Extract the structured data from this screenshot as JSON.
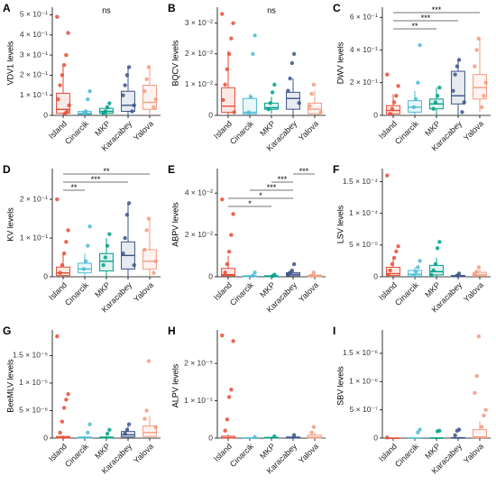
{
  "chart_data": [
    {
      "type": "box",
      "panel": "A",
      "ylabel": "VDV1 levels",
      "ylim": [
        0,
        0.52
      ],
      "yticks": [
        0,
        {
          "value": 0.1,
          "label": "1 × 10⁻¹"
        },
        {
          "value": 0.2,
          "label": "2 × 10⁻¹"
        },
        {
          "value": 0.3,
          "label": "3 × 10⁻¹"
        },
        {
          "value": 0.4,
          "label": "4 × 10⁻¹"
        },
        {
          "value": 0.5,
          "label": "5 × 10⁻¹"
        }
      ],
      "annotation": "ns",
      "brackets": [],
      "series": [
        {
          "name": "Island",
          "color": "#e64b35",
          "q1": 0.01,
          "median": 0.03,
          "q3": 0.11,
          "whislo": 0,
          "whishi": 0.25,
          "points": [
            0.49,
            0.41,
            0.3,
            0.25,
            0.2,
            0.15,
            0.08,
            0.05,
            0.02,
            0.01
          ]
        },
        {
          "name": "Cinarcik",
          "color": "#4dbbd5",
          "q1": 0.005,
          "median": 0.01,
          "q3": 0.02,
          "whislo": 0,
          "whishi": 0.03,
          "points": [
            0.12,
            0.08,
            0.02,
            0.01
          ]
        },
        {
          "name": "MKP",
          "color": "#00a087",
          "q1": 0.01,
          "median": 0.02,
          "q3": 0.035,
          "whislo": 0,
          "whishi": 0.05,
          "points": [
            0.06,
            0.04,
            0.02,
            0.01
          ]
        },
        {
          "name": "Karacabey",
          "color": "#3c5488",
          "q1": 0.02,
          "median": 0.05,
          "q3": 0.12,
          "whislo": 0,
          "whishi": 0.24,
          "points": [
            0.24,
            0.2,
            0.15,
            0.1,
            0.05,
            0.02
          ]
        },
        {
          "name": "Yalova",
          "color": "#f39b7f",
          "q1": 0.03,
          "median": 0.065,
          "q3": 0.15,
          "whislo": 0,
          "whishi": 0.25,
          "points": [
            0.24,
            0.18,
            0.12,
            0.08,
            0.04
          ]
        }
      ]
    },
    {
      "type": "box",
      "panel": "B",
      "ylabel": "BQCV levels",
      "ylim": [
        0,
        0.034
      ],
      "yticks": [
        0,
        {
          "value": 0.01,
          "label": "1 × 10⁻²"
        },
        {
          "value": 0.02,
          "label": "2 × 10⁻²"
        },
        {
          "value": 0.03,
          "label": "3 × 10⁻²"
        }
      ],
      "annotation": "ns",
      "brackets": [],
      "series": [
        {
          "name": "Island",
          "color": "#e64b35",
          "q1": 0.001,
          "median": 0.003,
          "q3": 0.009,
          "whislo": 0,
          "whishi": 0.021,
          "points": [
            0.033,
            0.03,
            0.025,
            0.02,
            0.015,
            0.01,
            0.005,
            0.001
          ]
        },
        {
          "name": "Cinarcik",
          "color": "#4dbbd5",
          "q1": 0.0005,
          "median": 0.001,
          "q3": 0.0055,
          "whislo": 0,
          "whishi": 0.007,
          "points": [
            0.026,
            0.02,
            0.006,
            0.001
          ]
        },
        {
          "name": "MKP",
          "color": "#00a087",
          "q1": 0.002,
          "median": 0.0025,
          "q3": 0.004,
          "whislo": 0.0005,
          "whishi": 0.006,
          "points": [
            0.01,
            0.0075,
            0.004,
            0.002
          ]
        },
        {
          "name": "Karacabey",
          "color": "#3c5488",
          "q1": 0.002,
          "median": 0.0055,
          "q3": 0.0075,
          "whislo": 0,
          "whishi": 0.012,
          "points": [
            0.02,
            0.017,
            0.012,
            0.008,
            0.004
          ]
        },
        {
          "name": "Yalova",
          "color": "#f39b7f",
          "q1": 0.0005,
          "median": 0.002,
          "q3": 0.004,
          "whislo": 0,
          "whishi": 0.008,
          "points": [
            0.01,
            0.007,
            0.003,
            0.001
          ]
        }
      ]
    },
    {
      "type": "box",
      "panel": "C",
      "ylabel": "DWV levels",
      "ylim": [
        0,
        0.64
      ],
      "yticks": [
        0,
        {
          "value": 0.2,
          "label": "2 × 10⁻¹"
        },
        {
          "value": 0.4,
          "label": "4 × 10⁻¹"
        },
        {
          "value": 0.6,
          "label": "6 × 10⁻¹"
        }
      ],
      "brackets": [
        {
          "pair": [
            0,
            2
          ],
          "label": "**"
        },
        {
          "pair": [
            0,
            3
          ],
          "label": "***"
        },
        {
          "pair": [
            0,
            4
          ],
          "label": "***"
        }
      ],
      "series": [
        {
          "name": "Island",
          "color": "#e64b35",
          "q1": 0.01,
          "median": 0.03,
          "q3": 0.06,
          "whislo": 0,
          "whishi": 0.13,
          "points": [
            0.25,
            0.18,
            0.12,
            0.08,
            0.04,
            0.01
          ]
        },
        {
          "name": "Cinarcik",
          "color": "#4dbbd5",
          "q1": 0.02,
          "median": 0.05,
          "q3": 0.09,
          "whislo": 0,
          "whishi": 0.15,
          "points": [
            0.43,
            0.2,
            0.1,
            0.05
          ]
        },
        {
          "name": "MKP",
          "color": "#00a087",
          "q1": 0.04,
          "median": 0.07,
          "q3": 0.1,
          "whislo": 0,
          "whishi": 0.17,
          "points": [
            0.17,
            0.12,
            0.08,
            0.04
          ]
        },
        {
          "name": "Karacabey",
          "color": "#3c5488",
          "q1": 0.07,
          "median": 0.12,
          "q3": 0.27,
          "whislo": 0,
          "whishi": 0.34,
          "points": [
            0.34,
            0.3,
            0.25,
            0.15,
            0.08,
            0.02
          ]
        },
        {
          "name": "Yalova",
          "color": "#f39b7f",
          "q1": 0.1,
          "median": 0.17,
          "q3": 0.25,
          "whislo": 0.02,
          "whishi": 0.47,
          "points": [
            0.47,
            0.4,
            0.3,
            0.2,
            0.12,
            0.05
          ]
        }
      ]
    },
    {
      "type": "box",
      "panel": "D",
      "ylabel": "KV levels",
      "ylim": [
        0,
        0.27
      ],
      "yticks": [
        0,
        {
          "value": 0.1,
          "label": "1 × 10⁻¹"
        },
        {
          "value": 0.2,
          "label": "2 × 10⁻¹"
        }
      ],
      "brackets": [
        {
          "pair": [
            0,
            1
          ],
          "label": "**"
        },
        {
          "pair": [
            0,
            3
          ],
          "label": "***"
        },
        {
          "pair": [
            0,
            4
          ],
          "label": "**"
        }
      ],
      "series": [
        {
          "name": "Island",
          "color": "#e64b35",
          "q1": 0.003,
          "median": 0.01,
          "q3": 0.025,
          "whislo": 0,
          "whishi": 0.06,
          "points": [
            0.2,
            0.12,
            0.09,
            0.06,
            0.03,
            0.01
          ]
        },
        {
          "name": "Cinarcik",
          "color": "#4dbbd5",
          "q1": 0.01,
          "median": 0.02,
          "q3": 0.035,
          "whislo": 0,
          "whishi": 0.06,
          "points": [
            0.13,
            0.08,
            0.04,
            0.02
          ]
        },
        {
          "name": "MKP",
          "color": "#00a087",
          "q1": 0.015,
          "median": 0.04,
          "q3": 0.06,
          "whislo": 0,
          "whishi": 0.1,
          "points": [
            0.11,
            0.08,
            0.05,
            0.03
          ]
        },
        {
          "name": "Karacabey",
          "color": "#3c5488",
          "q1": 0.02,
          "median": 0.055,
          "q3": 0.09,
          "whislo": 0,
          "whishi": 0.19,
          "points": [
            0.19,
            0.16,
            0.1,
            0.06,
            0.03
          ]
        },
        {
          "name": "Yalova",
          "color": "#f39b7f",
          "q1": 0.02,
          "median": 0.04,
          "q3": 0.07,
          "whislo": 0,
          "whishi": 0.15,
          "points": [
            0.15,
            0.12,
            0.07,
            0.04,
            0.01
          ]
        }
      ]
    },
    {
      "type": "box",
      "panel": "E",
      "ylabel": "ABPV levels",
      "ylim": [
        0,
        0.05
      ],
      "yticks": [
        0,
        {
          "value": 0.02,
          "label": "2 × 10⁻²"
        },
        {
          "value": 0.04,
          "label": "4 × 10⁻²"
        }
      ],
      "brackets": [
        {
          "pair": [
            0,
            2
          ],
          "label": "*"
        },
        {
          "pair": [
            0,
            3
          ],
          "label": "*"
        },
        {
          "pair": [
            1,
            3
          ],
          "label": "***"
        },
        {
          "pair": [
            2,
            3
          ],
          "label": "***"
        },
        {
          "pair": [
            3,
            4
          ],
          "label": "***"
        }
      ],
      "series": [
        {
          "name": "Island",
          "color": "#e64b35",
          "q1": 0.0005,
          "median": 0.001,
          "q3": 0.004,
          "whislo": 0,
          "whishi": 0.01,
          "points": [
            0.037,
            0.03,
            0.02,
            0.012,
            0.006,
            0.002
          ]
        },
        {
          "name": "Cinarcik",
          "color": "#4dbbd5",
          "q1": 0,
          "median": 0.0002,
          "q3": 0.0005,
          "whislo": 0,
          "whishi": 0.0008,
          "points": [
            0.002,
            0.0005
          ]
        },
        {
          "name": "MKP",
          "color": "#00a087",
          "q1": 0,
          "median": 0.0002,
          "q3": 0.0005,
          "whislo": 0,
          "whishi": 0.0008,
          "points": [
            0.001,
            0.0003
          ]
        },
        {
          "name": "Karacabey",
          "color": "#3c5488",
          "q1": 0.0005,
          "median": 0.0012,
          "q3": 0.002,
          "whislo": 0,
          "whishi": 0.003,
          "points": [
            0.006,
            0.003,
            0.002,
            0.001
          ]
        },
        {
          "name": "Yalova",
          "color": "#f39b7f",
          "q1": 0,
          "median": 0.0003,
          "q3": 0.0008,
          "whislo": 0,
          "whishi": 0.001,
          "points": [
            0.002,
            0.0005
          ]
        }
      ]
    },
    {
      "type": "box",
      "panel": "F",
      "ylabel": "LSV levels",
      "ylim": [
        0,
        0.000165
      ],
      "yticks": [
        0,
        {
          "value": 5e-05,
          "label": "5 × 10⁻⁵"
        },
        {
          "value": 0.0001,
          "label": "1 × 10⁻⁴"
        },
        {
          "value": 0.00015,
          "label": "1.5 × 10⁻⁴"
        }
      ],
      "brackets": [],
      "series": [
        {
          "name": "Island",
          "color": "#e64b35",
          "q1": 2e-06,
          "median": 5e-06,
          "q3": 1.5e-05,
          "whislo": 0,
          "whishi": 3e-05,
          "points": [
            0.00016,
            4.8e-05,
            4e-05,
            3e-05,
            2e-05,
            1e-05,
            3e-06
          ]
        },
        {
          "name": "Cinarcik",
          "color": "#4dbbd5",
          "q1": 1e-06,
          "median": 4e-06,
          "q3": 1e-05,
          "whislo": 0,
          "whishi": 1.5e-05,
          "points": [
            2.5e-05,
            1.5e-05,
            8e-06,
            2e-06
          ]
        },
        {
          "name": "MKP",
          "color": "#00a087",
          "q1": 3e-06,
          "median": 8e-06,
          "q3": 1.8e-05,
          "whislo": 0,
          "whishi": 3e-05,
          "points": [
            5.5e-05,
            4.5e-05,
            2e-05,
            1e-05,
            3e-06
          ]
        },
        {
          "name": "Karacabey",
          "color": "#3c5488",
          "q1": 0,
          "median": 1e-06,
          "q3": 2e-06,
          "whislo": 0,
          "whishi": 4e-06,
          "points": [
            5e-06,
            2e-06
          ]
        },
        {
          "name": "Yalova",
          "color": "#f39b7f",
          "q1": 1e-06,
          "median": 3e-06,
          "q3": 7e-06,
          "whislo": 0,
          "whishi": 1.2e-05,
          "points": [
            1.5e-05,
            8e-06,
            3e-06
          ]
        }
      ]
    },
    {
      "type": "box",
      "panel": "G",
      "ylabel": "BeeMLV levels",
      "ylim": [
        0,
        1.9e-05
      ],
      "yticks": [
        0,
        {
          "value": 5e-06,
          "label": "5 × 10⁻⁶"
        },
        {
          "value": 1e-05,
          "label": "1 × 10⁻⁵"
        },
        {
          "value": 1.5e-05,
          "label": "1.5 × 10⁻⁵"
        }
      ],
      "brackets": [],
      "series": [
        {
          "name": "Island",
          "color": "#e64b35",
          "q1": 0,
          "median": 1e-07,
          "q3": 3e-07,
          "whislo": 0,
          "whishi": 5e-07,
          "points": [
            1.85e-05,
            8e-06,
            7e-06,
            5.5e-06,
            3e-06,
            1e-06
          ]
        },
        {
          "name": "Cinarcik",
          "color": "#4dbbd5",
          "q1": 0,
          "median": 5e-08,
          "q3": 2e-07,
          "whislo": 0,
          "whishi": 4e-07,
          "points": [
            2.5e-06,
            1e-06
          ]
        },
        {
          "name": "MKP",
          "color": "#00a087",
          "q1": 0,
          "median": 5e-08,
          "q3": 2e-07,
          "whislo": 0,
          "whishi": 4e-07,
          "points": [
            1.5e-06,
            8e-07
          ]
        },
        {
          "name": "Karacabey",
          "color": "#3c5488",
          "q1": 2e-07,
          "median": 6e-07,
          "q3": 1.2e-06,
          "whislo": 0,
          "whishi": 2.2e-06,
          "points": [
            2.5e-06,
            1.5e-06,
            8e-07
          ]
        },
        {
          "name": "Yalova",
          "color": "#f39b7f",
          "q1": 3e-07,
          "median": 1e-06,
          "q3": 2.2e-06,
          "whislo": 0,
          "whishi": 4e-06,
          "points": [
            1.4e-05,
            5e-06,
            3.5e-06,
            2e-06
          ]
        }
      ]
    },
    {
      "type": "box",
      "panel": "H",
      "ylabel": "ALPV levels",
      "ylim": [
        0,
        2.8e-05
      ],
      "yticks": [
        0,
        {
          "value": 1e-05,
          "label": "1 × 10⁻⁵"
        },
        {
          "value": 2e-05,
          "label": "2 × 10⁻⁵"
        }
      ],
      "brackets": [],
      "series": [
        {
          "name": "Island",
          "color": "#e64b35",
          "q1": 0,
          "median": 1e-07,
          "q3": 5e-07,
          "whislo": 0,
          "whishi": 1e-06,
          "points": [
            2.75e-05,
            2.6e-05,
            1.3e-05,
            1.1e-05,
            5e-06,
            2e-06
          ]
        },
        {
          "name": "Cinarcik",
          "color": "#4dbbd5",
          "q1": 0,
          "median": 0,
          "q3": 1e-07,
          "whislo": 0,
          "whishi": 2e-07,
          "points": [
            3e-07
          ]
        },
        {
          "name": "MKP",
          "color": "#00a087",
          "q1": 0,
          "median": 5e-08,
          "q3": 2e-07,
          "whislo": 0,
          "whishi": 4e-07,
          "points": [
            5e-07
          ]
        },
        {
          "name": "Karacabey",
          "color": "#3c5488",
          "q1": 0,
          "median": 1e-07,
          "q3": 3e-07,
          "whislo": 0,
          "whishi": 6e-07,
          "points": [
            8e-07
          ]
        },
        {
          "name": "Yalova",
          "color": "#f39b7f",
          "q1": 0,
          "median": 2e-07,
          "q3": 8e-07,
          "whislo": 0,
          "whishi": 1.5e-06,
          "points": [
            3e-06,
            1.5e-06
          ]
        }
      ]
    },
    {
      "type": "box",
      "panel": "I",
      "ylabel": "SBV levels",
      "ylim": [
        0,
        1.85e-06
      ],
      "yticks": [
        0,
        {
          "value": 5e-07,
          "label": "5 × 10⁻⁷"
        },
        {
          "value": 1e-06,
          "label": "1 × 10⁻⁶"
        },
        {
          "value": 1.5e-06,
          "label": "1.5 × 10⁻⁶"
        }
      ],
      "brackets": [],
      "series": [
        {
          "name": "Island",
          "color": "#e64b35",
          "q1": 0,
          "median": 0,
          "q3": 2e-09,
          "whislo": 0,
          "whishi": 5e-09,
          "points": [
            1e-08
          ]
        },
        {
          "name": "Cinarcik",
          "color": "#4dbbd5",
          "q1": 0,
          "median": 0,
          "q3": 5e-09,
          "whislo": 0,
          "whishi": 1e-08,
          "points": [
            1.5e-07,
            1e-07
          ]
        },
        {
          "name": "MKP",
          "color": "#00a087",
          "q1": 0,
          "median": 0,
          "q3": 5e-09,
          "whislo": 0,
          "whishi": 1e-08,
          "points": [
            1.3e-07,
            1.2e-07
          ]
        },
        {
          "name": "Karacabey",
          "color": "#3c5488",
          "q1": 0,
          "median": 1e-09,
          "q3": 1e-08,
          "whislo": 0,
          "whishi": 2e-08,
          "points": [
            1.5e-07,
            1.3e-07,
            5e-08
          ]
        },
        {
          "name": "Yalova",
          "color": "#f39b7f",
          "q1": 5e-09,
          "median": 2e-08,
          "q3": 1.5e-07,
          "whislo": 0,
          "whishi": 3e-07,
          "points": [
            1.8e-06,
            1.1e-06,
            8e-07,
            5e-07,
            4e-07,
            2e-07
          ]
        }
      ]
    }
  ]
}
